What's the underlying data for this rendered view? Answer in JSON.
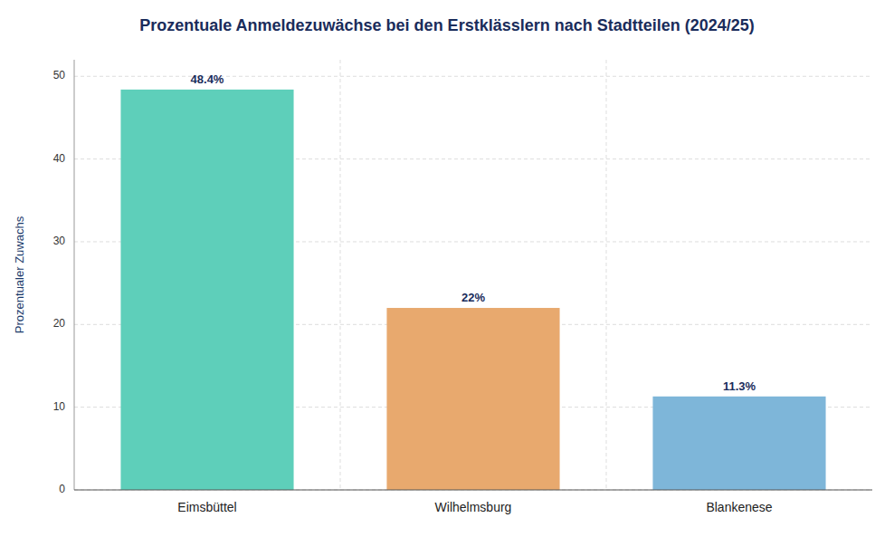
{
  "chart_data": {
    "type": "bar",
    "title": "Prozentuale Anmeldezuwächse bei den Erstklässlern nach Stadtteilen (2024/25)",
    "categories": [
      "Eimsbüttel",
      "Wilhelmsburg",
      "Blankenese"
    ],
    "values": [
      48.4,
      22.0,
      11.3
    ],
    "value_labels": [
      "48.4%",
      "22%",
      "11.3%"
    ],
    "data_labels": true,
    "colors": [
      "#5ecfba",
      "#e8a96e",
      "#7eb6d9"
    ],
    "ylabel": "Prozentualer Zuwachs",
    "ylim": [
      0,
      52
    ],
    "yticks": [
      0,
      10,
      20,
      30,
      40,
      50
    ],
    "grid": true
  }
}
